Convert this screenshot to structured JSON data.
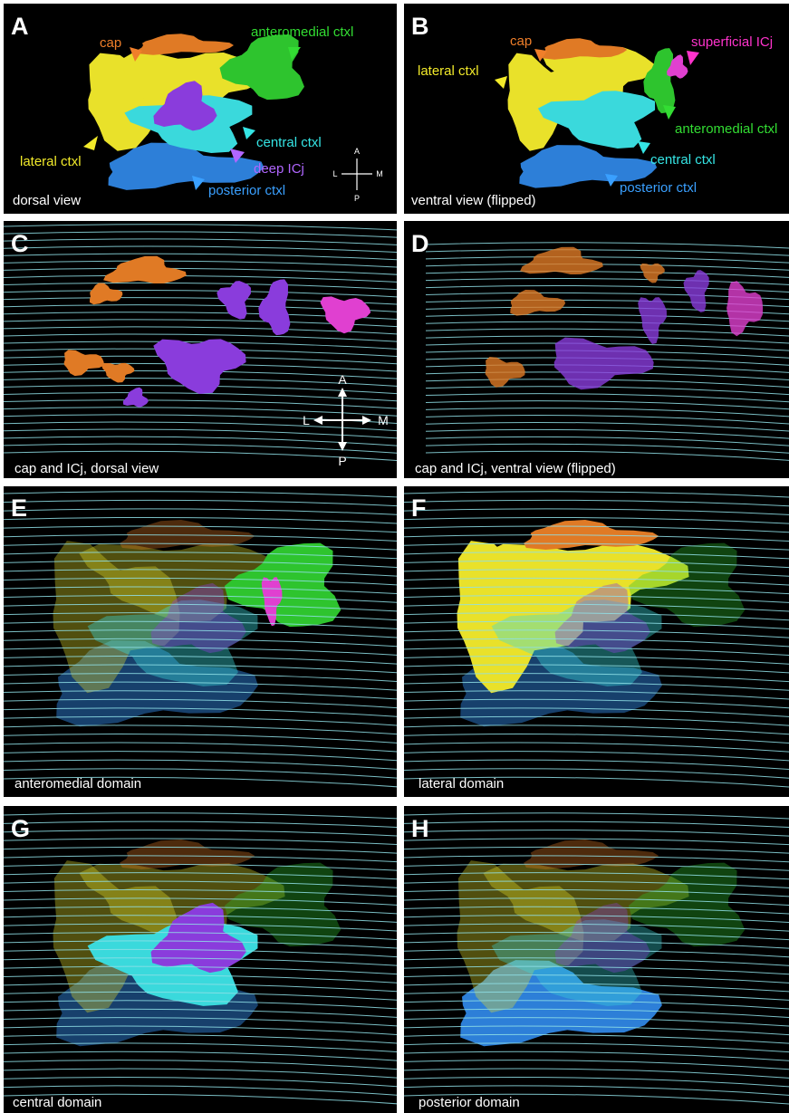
{
  "panels": [
    {
      "letter": "A",
      "caption": "dorsal view",
      "labels": [
        "cap",
        "anteromedial ctxl",
        "lateral ctxl",
        "central ctxl",
        "deep ICj",
        "posterior ctxl"
      ],
      "compass": [
        "A",
        "L",
        "M",
        "P"
      ]
    },
    {
      "letter": "B",
      "caption": "ventral view (flipped)",
      "labels": [
        "cap",
        "superficial ICj",
        "lateral ctxl",
        "anteromedial ctxl",
        "central ctxl",
        "posterior ctxl"
      ]
    },
    {
      "letter": "C",
      "caption": "cap and ICj, dorsal view",
      "compass": [
        "A",
        "L",
        "M",
        "P"
      ]
    },
    {
      "letter": "D",
      "caption": "cap and ICj, ventral view (flipped)"
    },
    {
      "letter": "E",
      "caption": "anteromedial domain"
    },
    {
      "letter": "F",
      "caption": "lateral domain"
    },
    {
      "letter": "G",
      "caption": "central domain"
    },
    {
      "letter": "H",
      "caption": "posterior domain"
    }
  ]
}
